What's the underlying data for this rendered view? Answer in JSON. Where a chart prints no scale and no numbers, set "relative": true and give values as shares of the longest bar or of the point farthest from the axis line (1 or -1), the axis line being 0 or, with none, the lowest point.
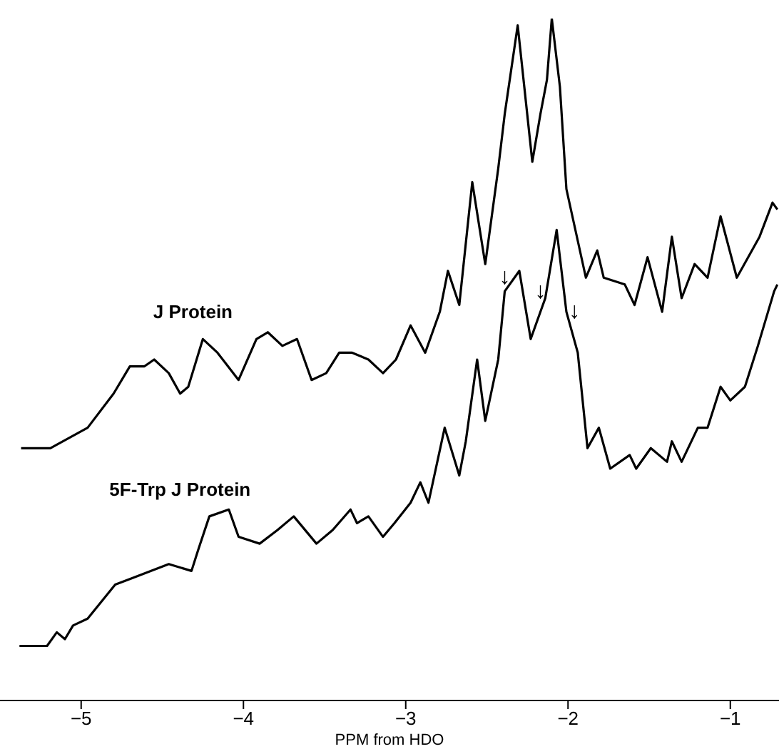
{
  "chart_data": {
    "type": "line",
    "relative": true,
    "xlabel": "PPM from HDO",
    "xlim": [
      -5.5,
      -0.7
    ],
    "xticks": [
      -5,
      -4,
      -3,
      -2,
      -1
    ],
    "grid": false,
    "legend": false,
    "marker": "none",
    "line_style": "solid",
    "annotations": [
      {
        "text": "↓",
        "x": -2.39,
        "y": 0.6
      },
      {
        "text": "↓",
        "x": -2.17,
        "y": 0.58
      },
      {
        "text": "↓",
        "x": -1.96,
        "y": 0.55
      }
    ],
    "series": [
      {
        "name": "J Protein",
        "color": "#000000",
        "x": [
          -5.37,
          -5.19,
          -4.96,
          -4.8,
          -4.7,
          -4.61,
          -4.55,
          -4.46,
          -4.39,
          -4.34,
          -4.25,
          -4.16,
          -4.03,
          -3.92,
          -3.85,
          -3.76,
          -3.67,
          -3.58,
          -3.49,
          -3.41,
          -3.33,
          -3.23,
          -3.14,
          -3.06,
          -2.97,
          -2.88,
          -2.79,
          -2.74,
          -2.67,
          -2.59,
          -2.51,
          -2.43,
          -2.39,
          -2.31,
          -2.22,
          -2.17,
          -2.13,
          -2.1,
          -2.05,
          -2.01,
          -1.89,
          -1.82,
          -1.78,
          -1.65,
          -1.59,
          -1.51,
          -1.42,
          -1.36,
          -1.3,
          -1.22,
          -1.14,
          -1.06,
          -0.96,
          -0.82,
          -0.74,
          -0.71
        ],
        "values": [
          0.37,
          0.37,
          0.4,
          0.45,
          0.49,
          0.49,
          0.5,
          0.48,
          0.45,
          0.46,
          0.53,
          0.51,
          0.47,
          0.53,
          0.54,
          0.52,
          0.53,
          0.47,
          0.48,
          0.51,
          0.51,
          0.5,
          0.48,
          0.5,
          0.55,
          0.51,
          0.57,
          0.63,
          0.58,
          0.76,
          0.64,
          0.78,
          0.86,
          0.99,
          0.79,
          0.86,
          0.91,
          1,
          0.9,
          0.75,
          0.62,
          0.66,
          0.62,
          0.61,
          0.58,
          0.65,
          0.57,
          0.68,
          0.59,
          0.64,
          0.62,
          0.71,
          0.62,
          0.68,
          0.73,
          0.72
        ]
      },
      {
        "name": "5F-Trp J Protein",
        "color": "#000000",
        "x": [
          -5.38,
          -5.21,
          -5.15,
          -5.1,
          -5.05,
          -4.96,
          -4.79,
          -4.68,
          -4.46,
          -4.32,
          -4.28,
          -4.21,
          -4.09,
          -4.03,
          -3.9,
          -3.79,
          -3.69,
          -3.55,
          -3.45,
          -3.34,
          -3.3,
          -3.23,
          -3.14,
          -3.07,
          -2.97,
          -2.91,
          -2.86,
          -2.76,
          -2.67,
          -2.63,
          -2.56,
          -2.51,
          -2.43,
          -2.39,
          -2.3,
          -2.23,
          -2.14,
          -2.07,
          -2.01,
          -1.94,
          -1.88,
          -1.81,
          -1.74,
          -1.62,
          -1.58,
          -1.49,
          -1.39,
          -1.36,
          -1.3,
          -1.2,
          -1.14,
          -1.06,
          -1,
          -0.91,
          -0.83,
          -0.73,
          -0.71
        ],
        "values": [
          0.08,
          0.08,
          0.1,
          0.09,
          0.11,
          0.12,
          0.17,
          0.18,
          0.2,
          0.19,
          0.22,
          0.27,
          0.28,
          0.24,
          0.23,
          0.25,
          0.27,
          0.23,
          0.25,
          0.28,
          0.26,
          0.27,
          0.24,
          0.26,
          0.29,
          0.32,
          0.29,
          0.4,
          0.33,
          0.38,
          0.5,
          0.41,
          0.5,
          0.6,
          0.63,
          0.53,
          0.59,
          0.69,
          0.57,
          0.51,
          0.37,
          0.4,
          0.34,
          0.36,
          0.34,
          0.37,
          0.35,
          0.38,
          0.35,
          0.4,
          0.4,
          0.46,
          0.44,
          0.46,
          0.52,
          0.6,
          0.61
        ]
      }
    ]
  }
}
